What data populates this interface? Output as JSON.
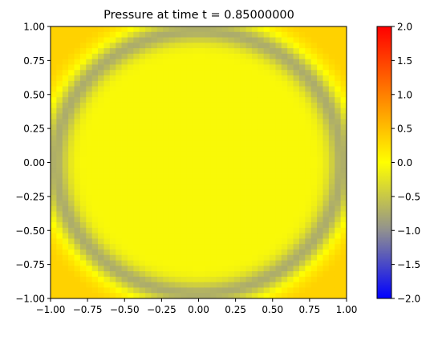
{
  "chart_data": {
    "type": "heatmap",
    "title": "Pressure at time t =     0.85000000",
    "xlabel": "",
    "ylabel": "",
    "xlim": [
      -1.0,
      1.0
    ],
    "ylim": [
      -1.0,
      1.0
    ],
    "x_ticks": [
      "−1.00",
      "−0.75",
      "−0.50",
      "−0.25",
      "0.00",
      "0.25",
      "0.50",
      "0.75",
      "1.00"
    ],
    "y_ticks": [
      "−1.00",
      "−0.75",
      "−0.50",
      "−0.25",
      "0.00",
      "0.25",
      "0.50",
      "0.75",
      "1.00"
    ],
    "grid": false,
    "field": {
      "resolution": 50,
      "description_of_values": "pressure field",
      "interior_value": -0.05,
      "ring_radius": 0.97,
      "ring_value": -0.75,
      "ring_width": 0.09,
      "corner_value": 0.35
    },
    "colorbar": {
      "range": [
        -2.0,
        2.0
      ],
      "ticks": [
        "2.0",
        "1.5",
        "1.0",
        "0.5",
        "0.0",
        "−0.5",
        "−1.0",
        "−1.5",
        "−2.0"
      ],
      "colormap": [
        {
          "value": -2.0,
          "color": "#0000ff"
        },
        {
          "value": -1.0,
          "color": "#909090"
        },
        {
          "value": 0.0,
          "color": "#ffff00"
        },
        {
          "value": 2.0,
          "color": "#ff0000"
        }
      ]
    }
  }
}
